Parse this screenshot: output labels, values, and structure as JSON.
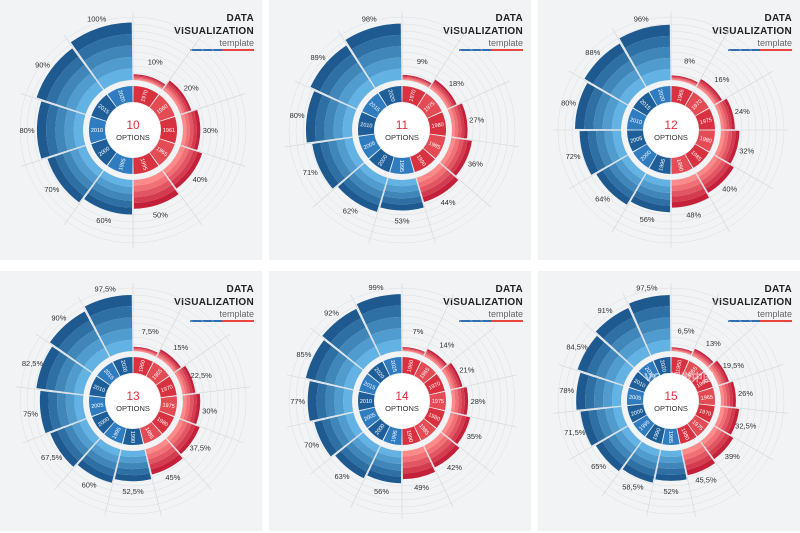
{
  "header": {
    "line1": "DATA",
    "line2": "VISUALIZATION",
    "line3": "template"
  },
  "colors": {
    "blue_dark": "#1e5a8f",
    "blue_light": "#62b2e3",
    "red_dark": "#c5203a",
    "red_light": "#ff8a8a",
    "background": "#f2f3f5"
  },
  "watermark": "VCG视觉中国",
  "chart_data": [
    {
      "type": "pie",
      "subtype": "radial-stacked-donut",
      "options_number": "10",
      "options_word": "OPTIONS",
      "values": [
        10,
        20,
        30,
        40,
        50,
        60,
        70,
        80,
        90,
        100
      ],
      "labels": [
        "10%",
        "20%",
        "30%",
        "40%",
        "50%",
        "60%",
        "70%",
        "80%",
        "90%",
        "100%"
      ],
      "years": [
        "1970",
        "1960",
        "1961",
        "1965",
        "1995",
        "1995",
        "2000",
        "2010",
        "2015",
        "2020"
      ]
    },
    {
      "type": "pie",
      "subtype": "radial-stacked-donut",
      "options_number": "11",
      "options_word": "OPTIONS",
      "values": [
        9,
        18,
        27,
        36,
        44,
        53,
        62,
        71,
        80,
        89,
        98
      ],
      "labels": [
        "9%",
        "18%",
        "27%",
        "36%",
        "44%",
        "53%",
        "62%",
        "71%",
        "80%",
        "89%",
        "98%"
      ],
      "years": [
        "1970",
        "1975",
        "1980",
        "1985",
        "1990",
        "1995",
        "2000",
        "2005",
        "2010",
        "2015",
        "2020"
      ]
    },
    {
      "type": "pie",
      "subtype": "radial-stacked-donut",
      "options_number": "12",
      "options_word": "OPTIONS",
      "values": [
        8,
        16,
        24,
        32,
        40,
        48,
        56,
        64,
        72,
        80,
        88,
        96
      ],
      "labels": [
        "8%",
        "16%",
        "24%",
        "32%",
        "40%",
        "48%",
        "56%",
        "64%",
        "72%",
        "80%",
        "88%",
        "96%"
      ],
      "years": [
        "1965",
        "1970",
        "1975",
        "1980",
        "1985",
        "1990",
        "1995",
        "2000",
        "2005",
        "2010",
        "2015",
        "2020"
      ]
    },
    {
      "type": "pie",
      "subtype": "radial-stacked-donut",
      "options_number": "13",
      "options_word": "OPTIONS",
      "values": [
        7.5,
        15,
        22.5,
        30,
        37.5,
        45,
        52.5,
        60,
        67.5,
        75,
        82.5,
        90,
        97.5
      ],
      "labels": [
        "7,5%",
        "15%",
        "22,5%",
        "30%",
        "37,5%",
        "45%",
        "52,5%",
        "60%",
        "67,5%",
        "75%",
        "82,5%",
        "90%",
        "97,5%"
      ],
      "years": [
        "1960",
        "1965",
        "1970",
        "1975",
        "1980",
        "1985",
        "1990",
        "1995",
        "2000",
        "2005",
        "2010",
        "2015",
        "2020"
      ]
    },
    {
      "type": "pie",
      "subtype": "radial-stacked-donut",
      "options_number": "14",
      "options_word": "OPTIONS",
      "values": [
        7,
        14,
        21,
        28,
        35,
        42,
        49,
        56,
        63,
        70,
        77,
        85,
        92,
        99
      ],
      "labels": [
        "7%",
        "14%",
        "21%",
        "28%",
        "35%",
        "42%",
        "49%",
        "56%",
        "63%",
        "70%",
        "77%",
        "85%",
        "92%",
        "99%"
      ],
      "years": [
        "1960",
        "1965",
        "1970",
        "1975",
        "1980",
        "1985",
        "1990",
        "1995",
        "2000",
        "2005",
        "2010",
        "2015",
        "2020",
        "2025"
      ]
    },
    {
      "type": "pie",
      "subtype": "radial-stacked-donut",
      "options_number": "15",
      "options_word": "OPTIONS",
      "values": [
        6.5,
        13,
        19.5,
        26,
        32.5,
        39,
        45.5,
        52,
        58.5,
        65,
        71.5,
        78,
        84.5,
        91,
        97.5
      ],
      "labels": [
        "6,5%",
        "13%",
        "19,5%",
        "26%",
        "32,5%",
        "39%",
        "45,5%",
        "52%",
        "58,5%",
        "65%",
        "71,5%",
        "78%",
        "84,5%",
        "91%",
        "97,5%"
      ],
      "years": [
        "1950",
        "1955",
        "1960",
        "1965",
        "1970",
        "1975",
        "1980",
        "1985",
        "1990",
        "1995",
        "2000",
        "2005",
        "2010",
        "2015",
        "2020"
      ]
    }
  ]
}
